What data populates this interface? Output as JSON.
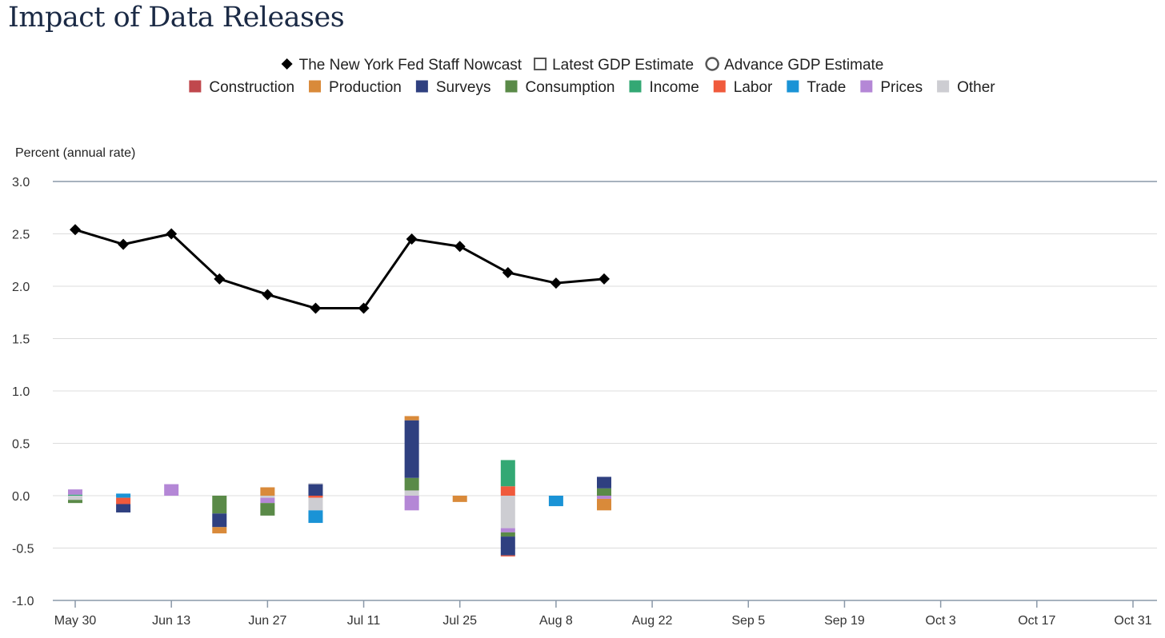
{
  "chart_data": {
    "type": "bar+line",
    "title": "Impact of Data Releases",
    "ylabel": "Percent (annual rate)",
    "ylim": [
      -1.0,
      3.0
    ],
    "yticks": [
      3.0,
      2.5,
      2.0,
      1.5,
      1.0,
      0.5,
      0.0,
      -0.5,
      -1.0
    ],
    "ytick_labels": [
      "3.0",
      "2.5",
      "2.0",
      "1.5",
      "1.0",
      "0.5",
      "0.0",
      "-0.5",
      "-1.0"
    ],
    "x_start": "May 30",
    "x_end": "Oct 31",
    "x_span_days": 154,
    "xticks": [
      {
        "label": "May 30",
        "day": 0
      },
      {
        "label": "Jun 13",
        "day": 14
      },
      {
        "label": "Jun 27",
        "day": 28
      },
      {
        "label": "Jul 11",
        "day": 42
      },
      {
        "label": "Jul 25",
        "day": 56
      },
      {
        "label": "Aug 8",
        "day": 70
      },
      {
        "label": "Aug 22",
        "day": 84
      },
      {
        "label": "Sep 5",
        "day": 98
      },
      {
        "label": "Sep 19",
        "day": 112
      },
      {
        "label": "Oct 3",
        "day": 126
      },
      {
        "label": "Oct 17",
        "day": 140
      },
      {
        "label": "Oct 31",
        "day": 154
      }
    ],
    "grid": true,
    "legend_markers": [
      {
        "name": "The New York Fed Staff Nowcast",
        "symbol": "diamond"
      },
      {
        "name": "Latest GDP Estimate",
        "symbol": "square-open"
      },
      {
        "name": "Advance GDP Estimate",
        "symbol": "circle-open"
      }
    ],
    "categories": [
      {
        "name": "Construction",
        "color": "#c0484d"
      },
      {
        "name": "Production",
        "color": "#d98a3a"
      },
      {
        "name": "Surveys",
        "color": "#2f4080"
      },
      {
        "name": "Consumption",
        "color": "#5a8a48"
      },
      {
        "name": "Income",
        "color": "#33a874"
      },
      {
        "name": "Labor",
        "color": "#f05a3c"
      },
      {
        "name": "Trade",
        "color": "#1a93d6"
      },
      {
        "name": "Prices",
        "color": "#b487d6"
      },
      {
        "name": "Other",
        "color": "#cdcdd2"
      }
    ],
    "nowcast": {
      "name": "The New York Fed Staff Nowcast",
      "days": [
        0,
        7,
        14,
        21,
        28,
        35,
        42,
        49,
        56,
        63,
        70,
        77
      ],
      "values": [
        2.54,
        2.4,
        2.5,
        2.07,
        1.92,
        1.79,
        1.79,
        2.45,
        2.38,
        2.13,
        2.03,
        2.07
      ]
    },
    "bars": [
      {
        "day": 0,
        "segments": [
          {
            "category": "Income",
            "value": 0.01
          },
          {
            "category": "Prices",
            "value": 0.05
          },
          {
            "category": "Other",
            "value": -0.04
          },
          {
            "category": "Consumption",
            "value": -0.03
          }
        ]
      },
      {
        "day": 7,
        "segments": [
          {
            "category": "Trade",
            "value": 0.02
          },
          {
            "category": "Trade",
            "value": -0.02
          },
          {
            "category": "Labor",
            "value": -0.06
          },
          {
            "category": "Surveys",
            "value": -0.08
          }
        ]
      },
      {
        "day": 14,
        "segments": [
          {
            "category": "Prices",
            "value": 0.11
          }
        ]
      },
      {
        "day": 21,
        "segments": [
          {
            "category": "Consumption",
            "value": -0.17
          },
          {
            "category": "Surveys",
            "value": -0.13
          },
          {
            "category": "Production",
            "value": -0.06
          }
        ]
      },
      {
        "day": 28,
        "segments": [
          {
            "category": "Production",
            "value": 0.08
          },
          {
            "category": "Other",
            "value": -0.02
          },
          {
            "category": "Prices",
            "value": -0.05
          },
          {
            "category": "Consumption",
            "value": -0.12
          }
        ]
      },
      {
        "day": 35,
        "segments": [
          {
            "category": "Surveys",
            "value": 0.11
          },
          {
            "category": "Other",
            "value": 0.01
          },
          {
            "category": "Labor",
            "value": -0.02
          },
          {
            "category": "Other",
            "value": -0.12
          },
          {
            "category": "Trade",
            "value": -0.12
          }
        ]
      },
      {
        "day": 49,
        "segments": [
          {
            "category": "Other",
            "value": 0.05
          },
          {
            "category": "Consumption",
            "value": 0.12
          },
          {
            "category": "Surveys",
            "value": 0.55
          },
          {
            "category": "Production",
            "value": 0.04
          },
          {
            "category": "Prices",
            "value": -0.14
          }
        ]
      },
      {
        "day": 56,
        "segments": [
          {
            "category": "Production",
            "value": -0.06
          }
        ]
      },
      {
        "day": 63,
        "segments": [
          {
            "category": "Labor",
            "value": 0.09
          },
          {
            "category": "Income",
            "value": 0.25
          },
          {
            "category": "Other",
            "value": -0.31
          },
          {
            "category": "Prices",
            "value": -0.04
          },
          {
            "category": "Consumption",
            "value": -0.04
          },
          {
            "category": "Surveys",
            "value": -0.18
          },
          {
            "category": "Labor",
            "value": -0.01
          }
        ]
      },
      {
        "day": 70,
        "segments": [
          {
            "category": "Trade",
            "value": -0.1
          }
        ]
      },
      {
        "day": 77,
        "segments": [
          {
            "category": "Consumption",
            "value": 0.07
          },
          {
            "category": "Surveys",
            "value": 0.11
          },
          {
            "category": "Prices",
            "value": -0.03
          },
          {
            "category": "Production",
            "value": -0.11
          }
        ]
      }
    ]
  }
}
